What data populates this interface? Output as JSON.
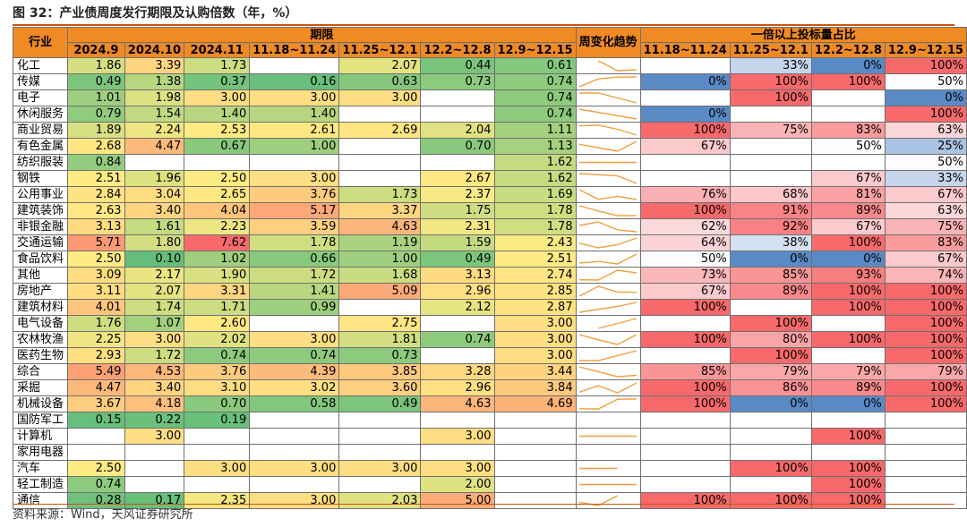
{
  "title": "图 32：产业债周度发行期限及认购倍数（年，%）",
  "source": "资料来源：Wind，天风证券研究所",
  "headers": {
    "industry": "行业",
    "term_group": "期限",
    "ratio_group": "一倍以上投标量占比",
    "trend": "周变化趋势",
    "term_cols": [
      "2024.9",
      "2024.10",
      "2024.11",
      "11.18~11.24",
      "11.25~12.1",
      "12.2~12.8",
      "12.9~12.15"
    ],
    "ratio_cols": [
      "11.18~11.24",
      "11.25~12.1",
      "12.2~12.8",
      "12.9~12.15"
    ]
  },
  "colors": {
    "header_bg": "#f08a24",
    "accent": "#c8550a",
    "term_low": "#63be7b",
    "term_mid": "#ffeb84",
    "term_high": "#f8696b",
    "ratio_low": "#5a8ac6",
    "ratio_mid": "#fcfcff",
    "ratio_high": "#f8696b",
    "sparkline": "#f0a040"
  },
  "rows": [
    {
      "industry": "化工",
      "terms": [
        "1.86",
        "3.39",
        "1.73",
        "",
        "2.07",
        "0.44",
        "0.61"
      ],
      "ratios": [
        "",
        "33%",
        "0%",
        "100%"
      ]
    },
    {
      "industry": "传媒",
      "terms": [
        "0.49",
        "1.38",
        "0.37",
        "0.16",
        "0.63",
        "0.73",
        "0.74"
      ],
      "ratios": [
        "0%",
        "100%",
        "100%",
        "50%"
      ]
    },
    {
      "industry": "电子",
      "terms": [
        "1.01",
        "1.98",
        "3.00",
        "3.00",
        "3.00",
        "",
        "0.74"
      ],
      "ratios": [
        "",
        "100%",
        "",
        "0%"
      ]
    },
    {
      "industry": "休闲服务",
      "terms": [
        "0.79",
        "1.54",
        "1.40",
        "1.40",
        "",
        "",
        "0.74"
      ],
      "ratios": [
        "0%",
        "",
        "",
        "100%"
      ]
    },
    {
      "industry": "商业贸易",
      "terms": [
        "1.89",
        "2.24",
        "2.53",
        "2.61",
        "2.69",
        "2.04",
        "1.11"
      ],
      "ratios": [
        "100%",
        "75%",
        "83%",
        "63%"
      ]
    },
    {
      "industry": "有色金属",
      "terms": [
        "2.68",
        "4.47",
        "0.67",
        "1.00",
        "",
        "0.70",
        "1.13"
      ],
      "ratios": [
        "67%",
        "",
        "50%",
        "25%"
      ]
    },
    {
      "industry": "纺织服装",
      "terms": [
        "0.84",
        "",
        "",
        "",
        "",
        "",
        "1.62"
      ],
      "ratios": [
        "",
        "",
        "",
        "50%"
      ]
    },
    {
      "industry": "钢铁",
      "terms": [
        "2.51",
        "1.96",
        "2.50",
        "3.00",
        "",
        "2.67",
        "1.62"
      ],
      "ratios": [
        "",
        "",
        "67%",
        "33%"
      ]
    },
    {
      "industry": "公用事业",
      "terms": [
        "2.84",
        "3.04",
        "2.65",
        "3.76",
        "1.73",
        "2.37",
        "1.69"
      ],
      "ratios": [
        "76%",
        "68%",
        "81%",
        "67%"
      ]
    },
    {
      "industry": "建筑装饰",
      "terms": [
        "2.63",
        "3.40",
        "4.04",
        "5.17",
        "3.37",
        "1.75",
        "1.78"
      ],
      "ratios": [
        "100%",
        "91%",
        "89%",
        "63%"
      ]
    },
    {
      "industry": "非银金融",
      "terms": [
        "3.13",
        "1.61",
        "2.23",
        "3.59",
        "4.63",
        "2.31",
        "1.78"
      ],
      "ratios": [
        "62%",
        "92%",
        "67%",
        "75%"
      ]
    },
    {
      "industry": "交通运输",
      "terms": [
        "5.71",
        "1.80",
        "7.62",
        "1.78",
        "1.19",
        "1.59",
        "2.43"
      ],
      "ratios": [
        "64%",
        "38%",
        "100%",
        "83%"
      ]
    },
    {
      "industry": "食品饮料",
      "terms": [
        "2.50",
        "0.10",
        "1.02",
        "0.66",
        "1.00",
        "0.49",
        "2.51"
      ],
      "ratios": [
        "50%",
        "0%",
        "0%",
        "67%"
      ]
    },
    {
      "industry": "其他",
      "terms": [
        "3.09",
        "2.17",
        "1.90",
        "1.72",
        "1.68",
        "3.13",
        "2.74"
      ],
      "ratios": [
        "73%",
        "85%",
        "93%",
        "74%"
      ]
    },
    {
      "industry": "房地产",
      "terms": [
        "3.11",
        "2.07",
        "3.31",
        "1.41",
        "5.09",
        "2.96",
        "2.85"
      ],
      "ratios": [
        "67%",
        "89%",
        "100%",
        "100%"
      ]
    },
    {
      "industry": "建筑材料",
      "terms": [
        "4.01",
        "1.74",
        "1.71",
        "0.99",
        "",
        "2.12",
        "2.87"
      ],
      "ratios": [
        "100%",
        "",
        "100%",
        "100%"
      ]
    },
    {
      "industry": "电气设备",
      "terms": [
        "1.76",
        "1.07",
        "2.60",
        "",
        "2.75",
        "",
        "3.00"
      ],
      "ratios": [
        "",
        "100%",
        "",
        "100%"
      ]
    },
    {
      "industry": "农林牧渔",
      "terms": [
        "2.25",
        "3.00",
        "2.02",
        "3.00",
        "1.81",
        "0.74",
        "3.00"
      ],
      "ratios": [
        "100%",
        "80%",
        "100%",
        "100%"
      ]
    },
    {
      "industry": "医药生物",
      "terms": [
        "2.93",
        "1.72",
        "0.74",
        "0.74",
        "0.73",
        "",
        "3.00"
      ],
      "ratios": [
        "",
        "100%",
        "",
        "100%"
      ]
    },
    {
      "industry": "综合",
      "terms": [
        "5.49",
        "4.53",
        "3.76",
        "4.39",
        "3.85",
        "3.28",
        "3.44"
      ],
      "ratios": [
        "85%",
        "79%",
        "79%",
        "79%"
      ]
    },
    {
      "industry": "采掘",
      "terms": [
        "4.47",
        "3.40",
        "3.10",
        "3.02",
        "3.60",
        "2.96",
        "3.84"
      ],
      "ratios": [
        "100%",
        "86%",
        "89%",
        "100%"
      ]
    },
    {
      "industry": "机械设备",
      "terms": [
        "3.67",
        "4.18",
        "0.70",
        "0.58",
        "0.49",
        "4.63",
        "4.69"
      ],
      "ratios": [
        "100%",
        "0%",
        "0%",
        "100%"
      ]
    },
    {
      "industry": "国防军工",
      "terms": [
        "0.15",
        "0.22",
        "0.19",
        "",
        "",
        "",
        ""
      ],
      "ratios": [
        "",
        "",
        "",
        ""
      ]
    },
    {
      "industry": "计算机",
      "terms": [
        "",
        "3.00",
        "",
        "",
        "",
        "3.00",
        ""
      ],
      "ratios": [
        "",
        "",
        "100%",
        ""
      ]
    },
    {
      "industry": "家用电器",
      "terms": [
        "",
        "",
        "",
        "",
        "",
        "",
        ""
      ],
      "ratios": [
        "",
        "",
        "",
        ""
      ]
    },
    {
      "industry": "汽车",
      "terms": [
        "2.50",
        "",
        "3.00",
        "3.00",
        "3.00",
        "3.00",
        ""
      ],
      "ratios": [
        "",
        "100%",
        "100%",
        ""
      ]
    },
    {
      "industry": "轻工制造",
      "terms": [
        "0.74",
        "",
        "",
        "",
        "",
        "2.00",
        ""
      ],
      "ratios": [
        "",
        "",
        "100%",
        ""
      ]
    },
    {
      "industry": "通信",
      "terms": [
        "0.28",
        "0.17",
        "2.35",
        "3.00",
        "2.03",
        "5.00",
        ""
      ],
      "ratios": [
        "100%",
        "100%",
        "100%",
        ""
      ]
    }
  ]
}
